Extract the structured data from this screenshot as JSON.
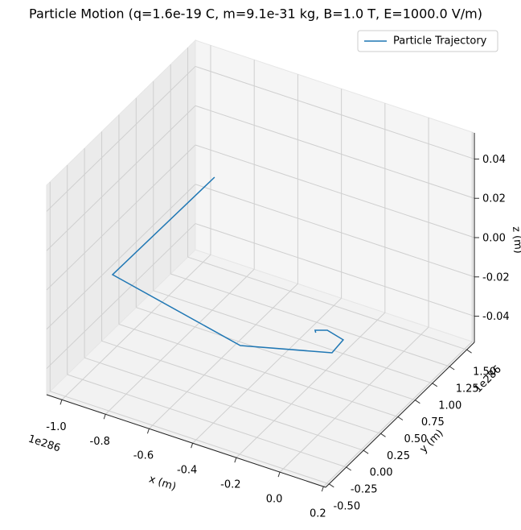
{
  "chart_data": {
    "type": "line3d",
    "title": "Particle Motion (q=1.6e-19 C, m=9.1e-31 kg, B=1.0 T, E=1000.0 V/m)",
    "xlabel": "x (m)",
    "ylabel": "y (m)",
    "zlabel": "z (m)",
    "x_offset_label": "1e286",
    "y_offset_label": "1e286",
    "xlim": [
      -1.07,
      0.21
    ],
    "ylim": [
      -0.55,
      1.61
    ],
    "zlim": [
      -0.0533,
      0.0533
    ],
    "xticks": [
      {
        "value": -1.0,
        "label": "-1.0"
      },
      -0.8,
      -0.6,
      -0.4,
      -0.2,
      {
        "value": 0.0,
        "label": "0.0"
      },
      0.2
    ],
    "yticks": [
      {
        "value": -0.5,
        "label": "-0.50"
      },
      -0.25,
      {
        "value": 0.0,
        "label": "0.00"
      },
      0.25,
      {
        "value": 0.5,
        "label": "0.50"
      },
      0.75,
      {
        "value": 1.0,
        "label": "1.00"
      },
      1.25,
      {
        "value": 1.5,
        "label": "1.50"
      }
    ],
    "zticks": [
      -0.04,
      -0.02,
      {
        "value": 0.0,
        "label": "0.00"
      },
      0.02,
      0.04
    ],
    "grid": true,
    "legend": "upper right",
    "series": [
      {
        "name": "Particle Trajectory",
        "color": "#1f77b4",
        "x": [
          -0.891,
          -0.898,
          -0.212,
          0.127,
          0.12,
          0.032,
          -0.01,
          0.001
        ],
        "y": [
          1.323,
          -0.137,
          -0.453,
          -0.195,
          -0.01,
          0.038,
          -0.007,
          -0.032
        ],
        "z": [
          0,
          0,
          0,
          0,
          0,
          0,
          0,
          0
        ]
      }
    ]
  }
}
